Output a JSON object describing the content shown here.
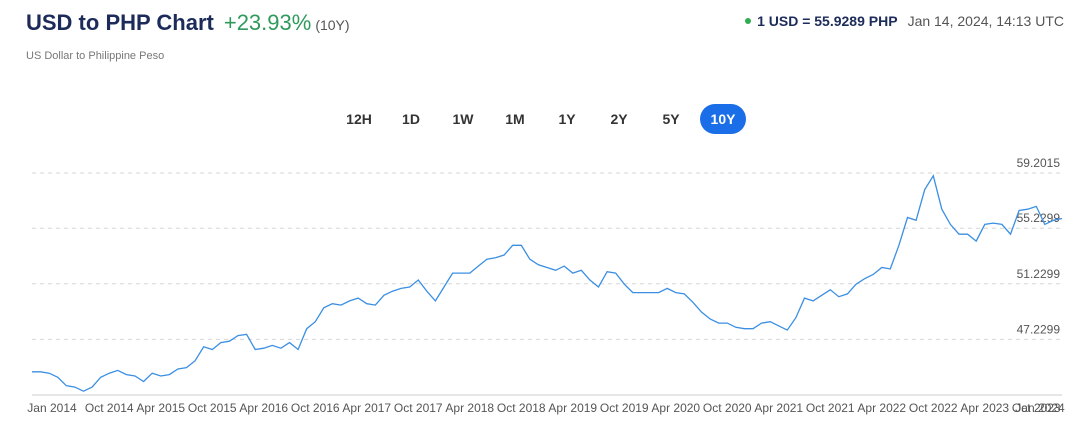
{
  "header": {
    "title": "USD to PHP Chart",
    "change": "+23.93%",
    "period": "(10Y)",
    "subtitle": "US Dollar to Philippine Peso",
    "rate": "1 USD = 55.9289 PHP",
    "timestamp": "Jan 14, 2024, 14:13 UTC"
  },
  "range_buttons": {
    "items": [
      "12H",
      "1D",
      "1W",
      "1M",
      "1Y",
      "2Y",
      "5Y",
      "10Y"
    ],
    "active": "10Y"
  },
  "chart_data": {
    "type": "line",
    "color": "#3b8fe3",
    "grid": true,
    "x": [
      "Jan 2014",
      "Feb 2014",
      "Mar 2014",
      "Apr 2014",
      "May 2014",
      "Jun 2014",
      "Jul 2014",
      "Aug 2014",
      "Sep 2014",
      "Oct 2014",
      "Nov 2014",
      "Dec 2014",
      "Jan 2015",
      "Feb 2015",
      "Mar 2015",
      "Apr 2015",
      "May 2015",
      "Jun 2015",
      "Jul 2015",
      "Aug 2015",
      "Sep 2015",
      "Oct 2015",
      "Nov 2015",
      "Dec 2015",
      "Jan 2016",
      "Feb 2016",
      "Mar 2016",
      "Apr 2016",
      "May 2016",
      "Jun 2016",
      "Jul 2016",
      "Aug 2016",
      "Sep 2016",
      "Oct 2016",
      "Nov 2016",
      "Dec 2016",
      "Jan 2017",
      "Feb 2017",
      "Mar 2017",
      "Apr 2017",
      "May 2017",
      "Jun 2017",
      "Jul 2017",
      "Aug 2017",
      "Sep 2017",
      "Oct 2017",
      "Nov 2017",
      "Dec 2017",
      "Jan 2018",
      "Feb 2018",
      "Mar 2018",
      "Apr 2018",
      "May 2018",
      "Jun 2018",
      "Jul 2018",
      "Aug 2018",
      "Sep 2018",
      "Oct 2018",
      "Nov 2018",
      "Dec 2018",
      "Jan 2019",
      "Feb 2019",
      "Mar 2019",
      "Apr 2019",
      "May 2019",
      "Jun 2019",
      "Jul 2019",
      "Aug 2019",
      "Sep 2019",
      "Oct 2019",
      "Nov 2019",
      "Dec 2019",
      "Jan 2020",
      "Feb 2020",
      "Mar 2020",
      "Apr 2020",
      "May 2020",
      "Jun 2020",
      "Jul 2020",
      "Aug 2020",
      "Sep 2020",
      "Oct 2020",
      "Nov 2020",
      "Dec 2020",
      "Jan 2021",
      "Feb 2021",
      "Mar 2021",
      "Apr 2021",
      "May 2021",
      "Jun 2021",
      "Jul 2021",
      "Aug 2021",
      "Sep 2021",
      "Oct 2021",
      "Nov 2021",
      "Dec 2021",
      "Jan 2022",
      "Feb 2022",
      "Mar 2022",
      "Apr 2022",
      "May 2022",
      "Jun 2022",
      "Jul 2022",
      "Aug 2022",
      "Sep 2022",
      "Oct 2022",
      "Nov 2022",
      "Dec 2022",
      "Jan 2023",
      "Feb 2023",
      "Mar 2023",
      "Apr 2023",
      "May 2023",
      "Jun 2023",
      "Jul 2023",
      "Aug 2023",
      "Sep 2023",
      "Oct 2023",
      "Nov 2023",
      "Dec 2023",
      "Jan 2024"
    ],
    "values": [
      44.9,
      44.9,
      44.8,
      44.5,
      43.9,
      43.8,
      43.5,
      43.8,
      44.5,
      44.8,
      45.0,
      44.7,
      44.6,
      44.2,
      44.8,
      44.6,
      44.7,
      45.1,
      45.2,
      45.7,
      46.7,
      46.5,
      47.0,
      47.1,
      47.5,
      47.6,
      46.5,
      46.6,
      46.8,
      46.6,
      47.0,
      46.5,
      48.0,
      48.5,
      49.5,
      49.8,
      49.7,
      50.0,
      50.2,
      49.8,
      49.7,
      50.4,
      50.7,
      50.9,
      51.0,
      51.5,
      50.7,
      50.0,
      51.0,
      52.0,
      52.0,
      52.0,
      52.5,
      53.0,
      53.1,
      53.3,
      54.0,
      54.0,
      53.0,
      52.6,
      52.4,
      52.2,
      52.5,
      52.0,
      52.2,
      51.5,
      51.0,
      52.1,
      52.0,
      51.2,
      50.6,
      50.6,
      50.6,
      50.6,
      50.9,
      50.6,
      50.5,
      49.9,
      49.2,
      48.7,
      48.4,
      48.4,
      48.1,
      48.0,
      48.0,
      48.4,
      48.5,
      48.2,
      47.9,
      48.8,
      50.2,
      50.0,
      50.4,
      50.8,
      50.3,
      50.5,
      51.2,
      51.6,
      51.9,
      52.4,
      52.3,
      54.0,
      56.0,
      55.8,
      58.0,
      59.0,
      56.6,
      55.5,
      54.8,
      54.8,
      54.3,
      55.5,
      55.6,
      55.5,
      54.8,
      56.5,
      56.6,
      56.8,
      55.5,
      55.8,
      55.93
    ],
    "xticks": [
      "Jan 2014",
      "Oct 2014",
      "Apr 2015",
      "Oct 2015",
      "Apr 2016",
      "Oct 2016",
      "Apr 2017",
      "Oct 2017",
      "Apr 2018",
      "Oct 2018",
      "Apr 2019",
      "Oct 2019",
      "Apr 2020",
      "Oct 2020",
      "Apr 2021",
      "Oct 2021",
      "Apr 2022",
      "Oct 2022",
      "Apr 2023",
      "Oct 2023",
      "Jan 2024"
    ],
    "ylim": [
      43.2299,
      59.2015
    ],
    "yticks": [
      47.2299,
      51.2299,
      55.2299,
      59.2015
    ]
  }
}
